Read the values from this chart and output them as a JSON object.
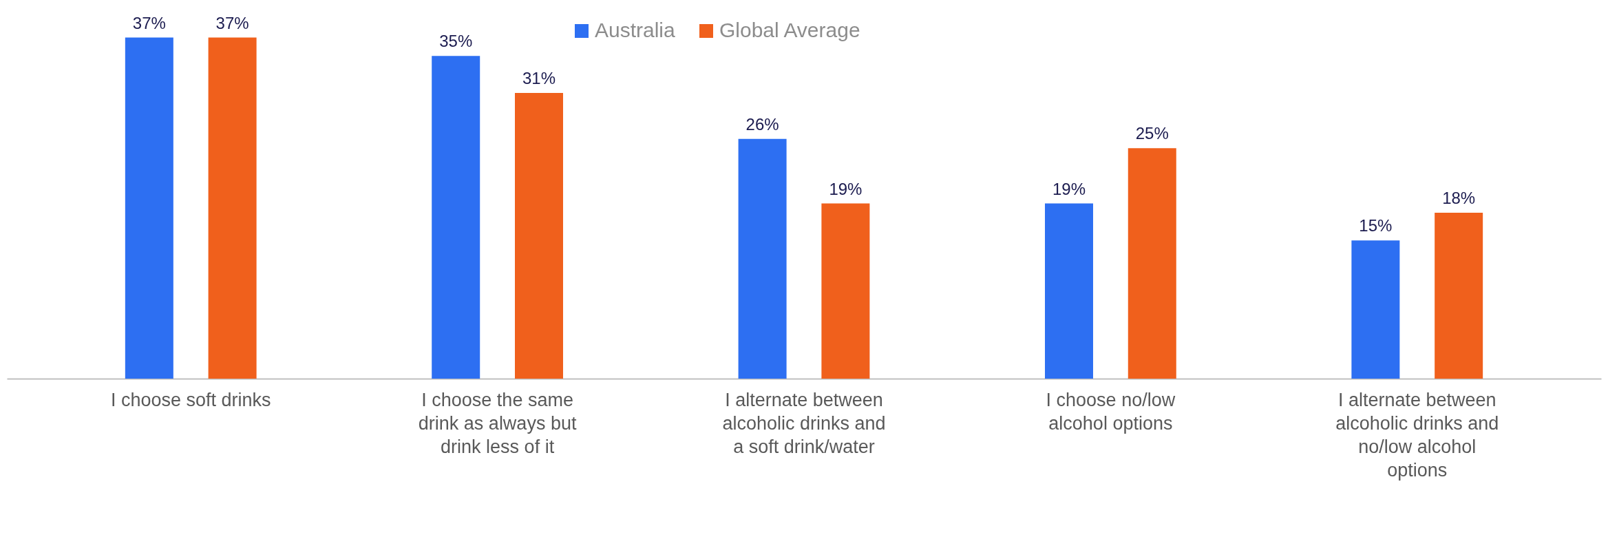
{
  "chart_data": {
    "type": "bar",
    "categories": [
      "I choose soft drinks",
      "I choose the same drink as always but drink less of it",
      "I alternate between alcoholic drinks and a soft drink/water",
      "I choose no/low alcohol options",
      "I alternate between alcoholic drinks and no/low alcohol options"
    ],
    "series": [
      {
        "name": "Australia",
        "color": "#2d6ff2",
        "values": [
          37,
          35,
          26,
          19,
          15
        ],
        "value_labels": [
          "37%",
          "35%",
          "26%",
          "19%",
          "15%"
        ]
      },
      {
        "name": "Global Average",
        "color": "#f0601c",
        "values": [
          37,
          31,
          19,
          25,
          18
        ],
        "value_labels": [
          "37%",
          "31%",
          "19%",
          "25%",
          "18%"
        ]
      }
    ],
    "legend": "top",
    "grid": false
  }
}
